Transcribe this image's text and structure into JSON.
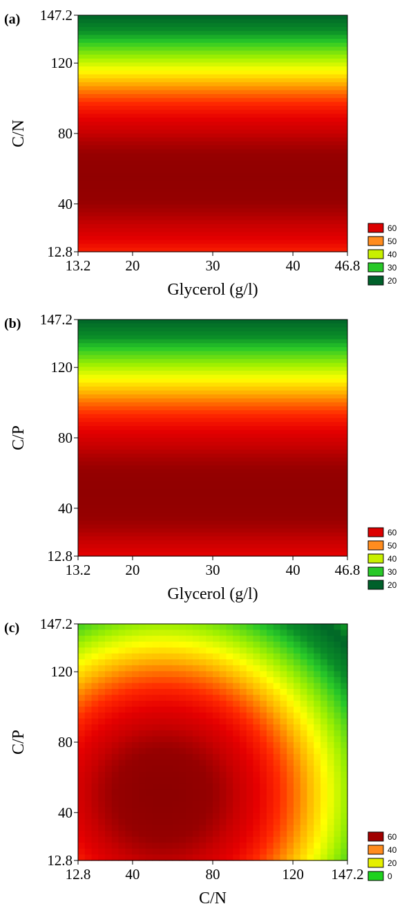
{
  "chart_data": [
    {
      "type": "heatmap",
      "panel_label": "(a)",
      "title": "",
      "xlabel": "Glycerol (g/l)",
      "ylabel": "C/N",
      "xlim": [
        13.2,
        46.8
      ],
      "ylim": [
        12.8,
        147.2
      ],
      "x_ticks": [
        "13.2",
        "20",
        "30",
        "40",
        "46.8"
      ],
      "y_ticks": [
        "12.8",
        "40",
        "80",
        "120",
        "147.2"
      ],
      "x_tick_values": [
        13.2,
        20,
        30,
        40,
        46.8
      ],
      "y_tick_values": [
        12.8,
        40,
        80,
        120,
        147.2
      ],
      "legend": {
        "position": "bottom-right",
        "levels": [
          "60",
          "50",
          "40",
          "30",
          "20"
        ],
        "colors": [
          "#dc0000",
          "#ff8c1e",
          "#c8f000",
          "#28c828",
          "#00602a"
        ]
      },
      "surface": {
        "depends_on": "y",
        "peak_y": 55,
        "max": 65,
        "min": 12,
        "edge_value_y": 12.8,
        "edge_value": 55
      }
    },
    {
      "type": "heatmap",
      "panel_label": "(b)",
      "title": "",
      "xlabel": "Glycerol (g/l)",
      "ylabel": "C/P",
      "xlim": [
        13.2,
        46.8
      ],
      "ylim": [
        12.8,
        147.2
      ],
      "x_ticks": [
        "13.2",
        "20",
        "30",
        "40",
        "46.8"
      ],
      "y_ticks": [
        "12.8",
        "40",
        "80",
        "120",
        "147.2"
      ],
      "x_tick_values": [
        13.2,
        20,
        30,
        40,
        46.8
      ],
      "y_tick_values": [
        12.8,
        40,
        80,
        120,
        147.2
      ],
      "legend": {
        "position": "bottom-right",
        "levels": [
          "60",
          "50",
          "40",
          "30",
          "20"
        ],
        "colors": [
          "#dc0000",
          "#ff8c1e",
          "#c8f000",
          "#28c828",
          "#00602a"
        ]
      },
      "surface": {
        "depends_on": "y",
        "peak_y": 48,
        "max": 65,
        "min": 12,
        "edge_value_y": 12.8,
        "edge_value": 58
      }
    },
    {
      "type": "heatmap",
      "panel_label": "(c)",
      "title": "",
      "xlabel": "C/N",
      "ylabel": "C/P",
      "xlim": [
        12.8,
        147.2
      ],
      "ylim": [
        12.8,
        147.2
      ],
      "x_ticks": [
        "12.8",
        "40",
        "80",
        "120",
        "147.2"
      ],
      "y_ticks": [
        "12.8",
        "40",
        "80",
        "120",
        "147.2"
      ],
      "x_tick_values": [
        12.8,
        40,
        80,
        120,
        147.2
      ],
      "y_tick_values": [
        12.8,
        40,
        80,
        120,
        147.2
      ],
      "legend": {
        "position": "bottom-right",
        "levels": [
          "60",
          "40",
          "20",
          "0"
        ],
        "colors": [
          "#a00000",
          "#ff8c1e",
          "#e6f000",
          "#1ed21e"
        ]
      },
      "surface": {
        "depends_on": "xy",
        "peak_x": 55,
        "peak_y": 50,
        "max": 66,
        "min": 2,
        "corner_value": 5
      }
    }
  ]
}
